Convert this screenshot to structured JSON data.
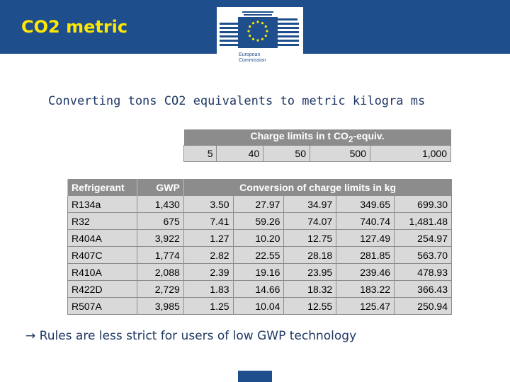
{
  "header": {
    "title": "CO2 metric",
    "logo_lines": [
      "European",
      "Commission"
    ],
    "bar_color": "#1f4e8c",
    "title_color": "#ffe800"
  },
  "subtitle": "Converting tons CO2 equivalents to metric kilogra ms",
  "charge_table": {
    "title_prefix": "Charge limits  in t CO",
    "title_sub": "2",
    "title_suffix": "-equiv.",
    "values": [
      "5",
      "40",
      "50",
      "500",
      "1,000"
    ]
  },
  "conversion_table": {
    "headers": {
      "refrigerant": "Refrigerant",
      "gwp": "GWP",
      "conversion": "Conversion of charge limits in kg"
    },
    "rows": [
      {
        "name": "R134a",
        "gwp": "1,430",
        "values": [
          "3.50",
          "27.97",
          "34.97",
          "349.65",
          "699.30"
        ]
      },
      {
        "name": "R32",
        "gwp": "675",
        "values": [
          "7.41",
          "59.26",
          "74.07",
          "740.74",
          "1,481.48"
        ]
      },
      {
        "name": "R404A",
        "gwp": "3,922",
        "values": [
          "1.27",
          "10.20",
          "12.75",
          "127.49",
          "254.97"
        ]
      },
      {
        "name": "R407C",
        "gwp": "1,774",
        "values": [
          "2.82",
          "22.55",
          "28.18",
          "281.85",
          "563.70"
        ]
      },
      {
        "name": "R410A",
        "gwp": "2,088",
        "values": [
          "2.39",
          "19.16",
          "23.95",
          "239.46",
          "478.93"
        ]
      },
      {
        "name": "R422D",
        "gwp": "2,729",
        "values": [
          "1.83",
          "14.66",
          "18.32",
          "183.22",
          "366.43"
        ]
      },
      {
        "name": "R507A",
        "gwp": "3,985",
        "values": [
          "1.25",
          "10.04",
          "12.55",
          "125.47",
          "250.94"
        ]
      }
    ]
  },
  "note": "→ Rules are less strict for users of low GWP technology"
}
